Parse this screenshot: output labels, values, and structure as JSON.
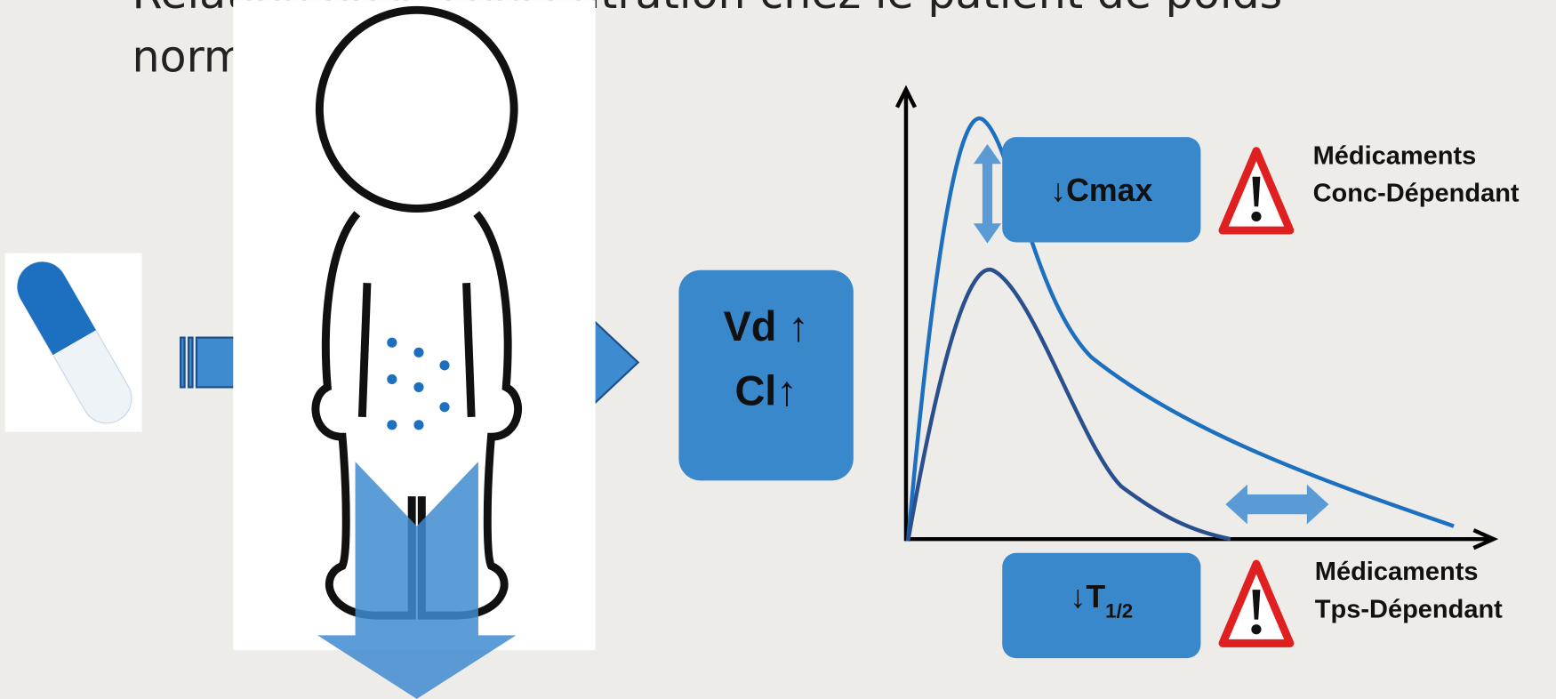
{
  "title": [
    "Relation dose-concentration chez le patient de poids",
    "normal"
  ],
  "center_box": {
    "lines": [
      "Vd ↑",
      "Cl↑"
    ]
  },
  "cmax_box": {
    "label": "↓Cmax"
  },
  "half_life_box": {
    "prefix": "↓T",
    "subscript": "1/2"
  },
  "warnings": [
    {
      "lines": [
        "Médicaments",
        "Conc-Dépendant"
      ]
    },
    {
      "lines": [
        "Médicaments",
        "Tps-Dépendant"
      ]
    }
  ]
}
